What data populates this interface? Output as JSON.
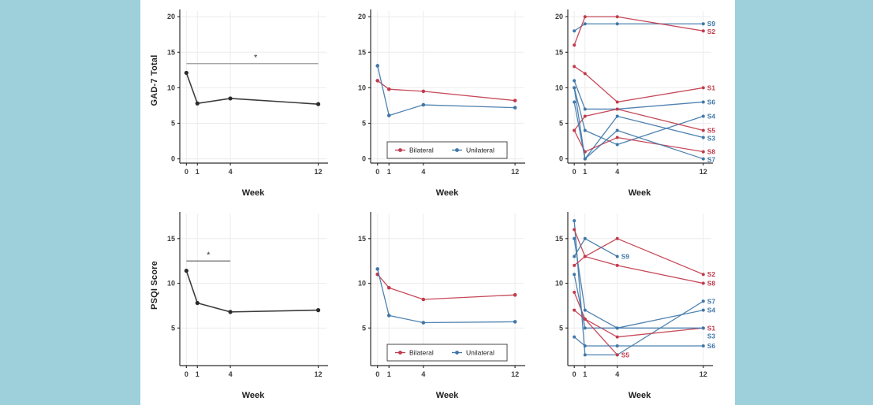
{
  "palette": {
    "background_teal": "#9dd0db",
    "panel_white": "#ffffff",
    "red": "#c13b4c",
    "blue": "#4077a9",
    "black": "#2b2b2b",
    "grid": "#ececec",
    "axis": "#2f2f2f",
    "tick_text": "#3c3c3c",
    "sig_light": "#9a9a9a",
    "sig_dark": "#5a5a5a"
  },
  "figure": {
    "row_labels": [
      "GAD-7 Total",
      "PSQI Score"
    ],
    "xlabel": "Week"
  },
  "legend": {
    "items": [
      {
        "label": "Bilateral",
        "color": "red"
      },
      {
        "label": "Unilateral",
        "color": "blue"
      }
    ]
  },
  "chart_data": [
    {
      "type": "line",
      "row": 0,
      "col": 0,
      "title": "",
      "ylabel": "GAD-7 Total",
      "xlabel": "Week",
      "ylim": [
        -0.6,
        20.8
      ],
      "yticks": [
        0,
        5,
        10,
        15,
        20
      ],
      "xticks": [
        0,
        1,
        4,
        12
      ],
      "sig": {
        "y": 13.4,
        "x1": 0,
        "x2": 12,
        "star": "*",
        "star_x": 6.3,
        "color": "sig_light"
      },
      "series": [
        {
          "name": "Overall mean",
          "color": "black",
          "x": [
            0,
            1,
            4,
            12
          ],
          "y": [
            12.1,
            7.8,
            8.5,
            7.7
          ]
        }
      ]
    },
    {
      "type": "line",
      "row": 0,
      "col": 1,
      "title": "",
      "ylabel": "",
      "xlabel": "Week",
      "ylim": [
        -0.6,
        20.8
      ],
      "yticks": [
        0,
        5,
        10,
        15,
        20
      ],
      "xticks": [
        0,
        1,
        4,
        12
      ],
      "legend": true,
      "series": [
        {
          "name": "Bilateral",
          "color": "red",
          "x": [
            0,
            1,
            4,
            12
          ],
          "y": [
            11.0,
            9.8,
            9.5,
            8.2
          ]
        },
        {
          "name": "Unilateral",
          "color": "blue",
          "x": [
            0,
            1,
            4,
            12
          ],
          "y": [
            13.1,
            6.1,
            7.6,
            7.2
          ]
        }
      ]
    },
    {
      "type": "line",
      "row": 0,
      "col": 2,
      "title": "",
      "ylabel": "",
      "xlabel": "Week",
      "ylim": [
        -0.6,
        20.8
      ],
      "yticks": [
        0,
        5,
        10,
        15,
        20
      ],
      "xticks": [
        0,
        1,
        4,
        12
      ],
      "series": [
        {
          "name": "S9",
          "label": "S9",
          "color": "blue",
          "x": [
            0,
            1,
            4,
            12
          ],
          "y": [
            18,
            19,
            19,
            19
          ]
        },
        {
          "name": "S2",
          "label": "S2",
          "color": "red",
          "x": [
            0,
            1,
            4,
            12
          ],
          "y": [
            16,
            20,
            20,
            18
          ]
        },
        {
          "name": "S1",
          "label": "S1",
          "color": "red",
          "x": [
            0,
            1,
            4,
            12
          ],
          "y": [
            13,
            12,
            8,
            10
          ]
        },
        {
          "name": "S6",
          "label": "S6",
          "color": "blue",
          "x": [
            0,
            1,
            4,
            12
          ],
          "y": [
            11,
            7,
            7,
            8
          ]
        },
        {
          "name": "S4",
          "label": "S4",
          "color": "blue",
          "x": [
            0,
            1,
            4,
            12
          ],
          "y": [
            10,
            4,
            2,
            6
          ]
        },
        {
          "name": "S5",
          "label": "S5",
          "color": "red",
          "x": [
            0,
            1,
            4,
            12
          ],
          "y": [
            4,
            6,
            7,
            4
          ]
        },
        {
          "name": "S3",
          "label": "S3",
          "color": "blue",
          "x": [
            0,
            1,
            4,
            12
          ],
          "y": [
            8,
            0,
            6,
            3
          ]
        },
        {
          "name": "S8",
          "label": "S8",
          "color": "red",
          "x": [
            0,
            1,
            4,
            12
          ],
          "y": [
            4,
            1,
            3,
            1
          ]
        },
        {
          "name": "S7",
          "label": "S7",
          "color": "blue",
          "x": [
            0,
            1,
            4,
            12
          ],
          "y": [
            10,
            0,
            4,
            0
          ]
        }
      ]
    },
    {
      "type": "line",
      "row": 1,
      "col": 0,
      "title": "",
      "ylabel": "PSQI Score",
      "xlabel": "Week",
      "ylim": [
        0.8,
        17.8
      ],
      "yticks": [
        5,
        10,
        15
      ],
      "xticks": [
        0,
        1,
        4,
        12
      ],
      "sig": {
        "y": 12.5,
        "x1": 0,
        "x2": 4,
        "star": "*",
        "star_x": 2,
        "color": "sig_dark"
      },
      "series": [
        {
          "name": "Overall mean",
          "color": "black",
          "x": [
            0,
            1,
            4,
            12
          ],
          "y": [
            11.4,
            7.8,
            6.8,
            7.0
          ]
        }
      ]
    },
    {
      "type": "line",
      "row": 1,
      "col": 1,
      "title": "",
      "ylabel": "",
      "xlabel": "Week",
      "ylim": [
        0.8,
        17.8
      ],
      "yticks": [
        5,
        10,
        15
      ],
      "xticks": [
        0,
        1,
        4,
        12
      ],
      "legend": true,
      "series": [
        {
          "name": "Bilateral",
          "color": "red",
          "x": [
            0,
            1,
            4,
            12
          ],
          "y": [
            11.0,
            9.5,
            8.2,
            8.7
          ]
        },
        {
          "name": "Unilateral",
          "color": "blue",
          "x": [
            0,
            1,
            4,
            12
          ],
          "y": [
            11.6,
            6.4,
            5.6,
            5.7
          ]
        }
      ]
    },
    {
      "type": "line",
      "row": 1,
      "col": 2,
      "title": "",
      "ylabel": "",
      "xlabel": "Week",
      "ylim": [
        0.8,
        17.8
      ],
      "yticks": [
        5,
        10,
        15
      ],
      "xticks": [
        0,
        1,
        4,
        12
      ],
      "series": [
        {
          "name": "S7",
          "label": "S7",
          "color": "blue",
          "x": [
            0,
            1,
            4,
            12
          ],
          "y": [
            17,
            2,
            2,
            8
          ]
        },
        {
          "name": "S2",
          "label": "S2",
          "color": "red",
          "x": [
            0,
            1,
            4,
            12
          ],
          "y": [
            16,
            13,
            15,
            11
          ]
        },
        {
          "name": "S4",
          "label": "S4",
          "color": "blue",
          "x": [
            0,
            1,
            4,
            12
          ],
          "y": [
            15,
            7,
            5,
            7
          ]
        },
        {
          "name": "S9",
          "label": "S9",
          "color": "blue",
          "x": [
            0,
            1,
            4
          ],
          "y": [
            13,
            15,
            13
          ]
        },
        {
          "name": "S8",
          "label": "S8",
          "color": "red",
          "x": [
            0,
            1,
            4,
            12
          ],
          "y": [
            12,
            13,
            12,
            10
          ]
        },
        {
          "name": "S1",
          "label": "S1",
          "color": "red",
          "x": [
            0,
            1,
            4,
            12
          ],
          "y": [
            9,
            6,
            4,
            5
          ]
        },
        {
          "name": "S3",
          "label": "S3",
          "color": "blue",
          "x": [
            0,
            1,
            4,
            12
          ],
          "y": [
            11,
            5,
            5,
            5
          ]
        },
        {
          "name": "S5",
          "label": "S5",
          "color": "red",
          "x": [
            0,
            1,
            4
          ],
          "y": [
            7,
            6,
            2
          ]
        },
        {
          "name": "S6",
          "label": "S6",
          "color": "blue",
          "x": [
            0,
            1,
            4,
            12
          ],
          "y": [
            4,
            3,
            3,
            3
          ]
        }
      ]
    }
  ]
}
